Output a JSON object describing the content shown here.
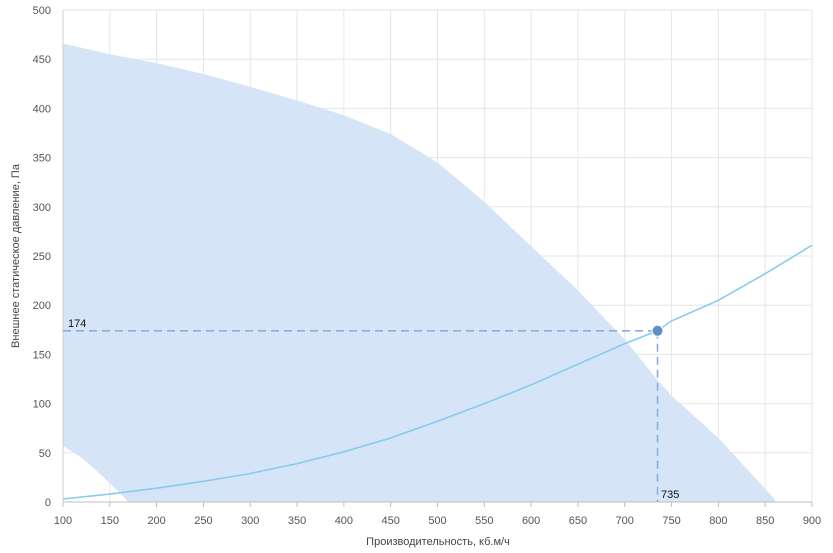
{
  "chart_data": {
    "type": "area",
    "xlabel": "Производительность, кб.м/ч",
    "ylabel": "Внешнее статическое давление, Па",
    "xlim": [
      100,
      900
    ],
    "ylim": [
      0,
      500
    ],
    "x_ticks": [
      100,
      150,
      200,
      250,
      300,
      350,
      400,
      450,
      500,
      550,
      600,
      650,
      700,
      750,
      800,
      850,
      900
    ],
    "y_ticks": [
      0,
      50,
      100,
      150,
      200,
      250,
      300,
      350,
      400,
      450,
      500
    ],
    "grid": true,
    "series": [
      {
        "kind": "area",
        "upper": {
          "x": [
            100,
            150,
            200,
            250,
            300,
            350,
            400,
            450,
            500,
            550,
            600,
            650,
            700,
            735,
            750,
            800,
            860
          ],
          "y": [
            466,
            455,
            446,
            435,
            422,
            408,
            393,
            374,
            345,
            305,
            260,
            215,
            165,
            124,
            108,
            65,
            3
          ]
        },
        "lower": {
          "x": [
            100,
            120,
            140,
            160,
            170
          ],
          "y": [
            57,
            45,
            28,
            10,
            0
          ]
        },
        "color": "#d5e5f7"
      },
      {
        "kind": "line",
        "x": [
          100,
          150,
          200,
          250,
          300,
          350,
          400,
          450,
          500,
          550,
          600,
          650,
          700,
          735,
          750,
          800,
          850,
          900
        ],
        "y": [
          3,
          8,
          14,
          21,
          29,
          39,
          51,
          65,
          82,
          100,
          119,
          140,
          161,
          174,
          184,
          205,
          232,
          261
        ],
        "color": "#89cbee"
      }
    ],
    "operating_point": {
      "x": 735,
      "y": 174,
      "x_label": "735",
      "y_label": "174",
      "color": "#5f8dc8",
      "guide_color": "#8aaee0"
    }
  }
}
